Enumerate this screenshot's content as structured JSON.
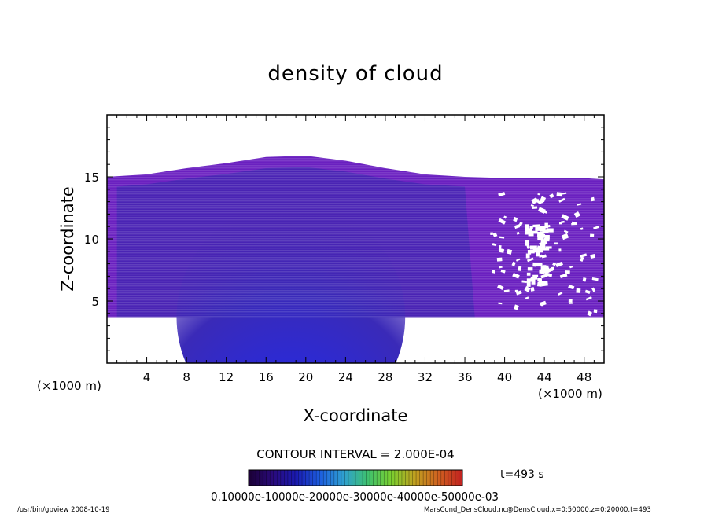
{
  "chart_data": {
    "type": "heatmap",
    "title": "density of cloud",
    "xlabel": "X-coordinate",
    "ylabel": "Z-coordinate",
    "x_unit": "(×1000 m)",
    "y_unit": "(×1000 m)",
    "x_unit_right": "(×1000 m)",
    "xlim": [
      0,
      50
    ],
    "ylim": [
      0,
      20
    ],
    "x_ticks": [
      4,
      8,
      12,
      16,
      20,
      24,
      28,
      32,
      36,
      40,
      44,
      48
    ],
    "y_ticks": [
      5,
      10,
      15
    ],
    "contour_interval": "CONTOUR INTERVAL = 2.000E-04",
    "time_label": "t=493 s",
    "colorbar_labels": "0.10000e-10000e-20000e-30000e-40000e-50000e-03",
    "cloud_base_z": 3.7,
    "cloud_top_profile": [
      [
        0,
        15.0
      ],
      [
        4,
        15.2
      ],
      [
        8,
        15.7
      ],
      [
        12,
        16.1
      ],
      [
        16,
        16.6
      ],
      [
        20,
        16.7
      ],
      [
        24,
        16.3
      ],
      [
        28,
        15.7
      ],
      [
        32,
        15.2
      ],
      [
        36,
        15.0
      ],
      [
        40,
        14.9
      ],
      [
        44,
        14.9
      ],
      [
        48,
        14.9
      ],
      [
        50,
        14.8
      ]
    ],
    "palette": [
      "#1a0033",
      "#2a0a7a",
      "#1a1ab0",
      "#1d5ee0",
      "#2fa0d0",
      "#3dc070",
      "#7ad030",
      "#c0a020",
      "#d06020",
      "#c02020"
    ]
  },
  "footer": {
    "left": "/usr/bin/gpview   2008-10-19",
    "right": "MarsCond_DensCloud.nc@DensCloud,x=0:50000,z=0:20000,t=493"
  }
}
